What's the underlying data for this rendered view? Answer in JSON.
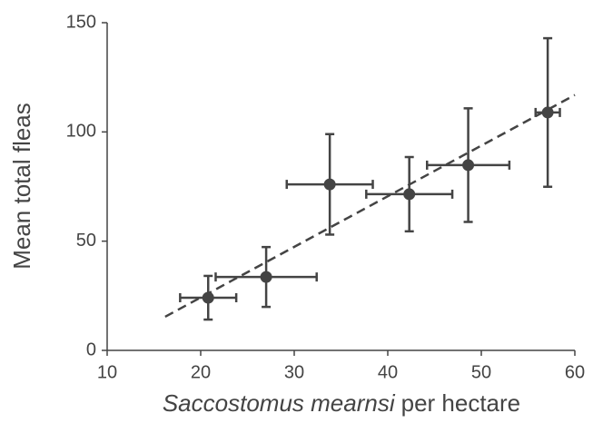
{
  "chart_data": {
    "type": "scatter",
    "xlabel": {
      "italic": "Saccostomus mearnsi",
      "text": "per hectare"
    },
    "ylabel": "Mean total fleas",
    "xlim": [
      10,
      60
    ],
    "xticks": [
      10,
      20,
      30,
      40,
      50,
      60
    ],
    "ylim": [
      0,
      150
    ],
    "yticks": [
      0,
      50,
      100,
      150
    ],
    "series": [
      {
        "color": "#444444",
        "x": [
          20.8,
          27.0,
          33.8,
          42.3,
          48.6,
          57.1
        ],
        "y": [
          24.1,
          33.6,
          76,
          71.5,
          84.8,
          108.9
        ],
        "x_err": [
          3,
          5.4,
          4.6,
          4.6,
          4.4,
          1.3
        ],
        "y_err": [
          10,
          13.7,
          23,
          17,
          26,
          34
        ]
      }
    ],
    "trend": {
      "x": [
        16.2,
        60
      ],
      "y": [
        15.4,
        116.9
      ],
      "color": "#444444"
    }
  }
}
